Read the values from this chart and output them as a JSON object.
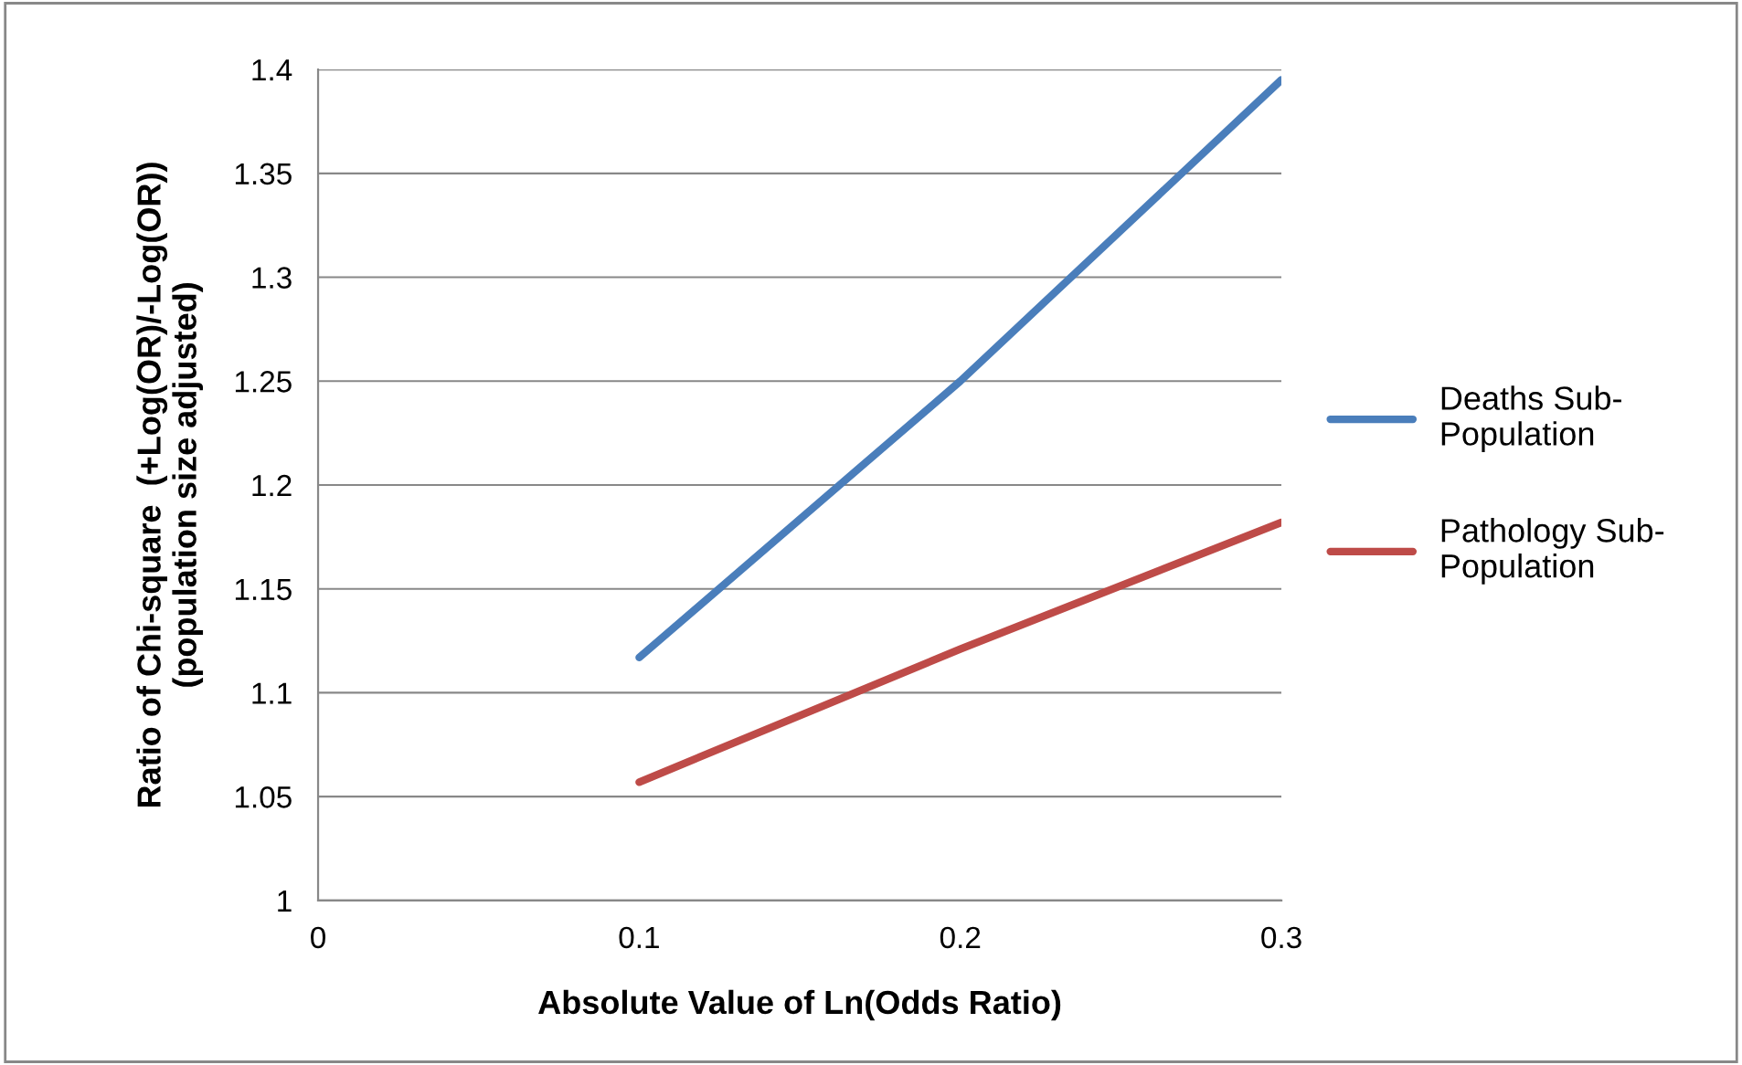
{
  "chart_data": {
    "type": "line",
    "xlabel": "Absolute Value of Ln(Odds Ratio)",
    "ylabel": "Ratio of Chi-square  (+Log(OR)/-Log(OR))\n(population size adjusted)",
    "x": [
      0.1,
      0.2,
      0.3
    ],
    "series": [
      {
        "name": "Deaths Sub-\nPopulation",
        "color": "#4a7ebb",
        "values": [
          1.117,
          1.25,
          1.395
        ]
      },
      {
        "name": "Pathology Sub-\nPopulation",
        "color": "#be4b48",
        "values": [
          1.057,
          1.121,
          1.182
        ]
      }
    ],
    "xlim": [
      0,
      0.3
    ],
    "xticks": [
      0,
      0.1,
      0.2,
      0.3
    ],
    "ylim": [
      1,
      1.4
    ],
    "yticks": [
      1,
      1.05,
      1.1,
      1.15,
      1.2,
      1.25,
      1.3,
      1.35,
      1.4
    ],
    "grid": "y",
    "legend": "right",
    "marker": "none",
    "line_style": "solid"
  }
}
